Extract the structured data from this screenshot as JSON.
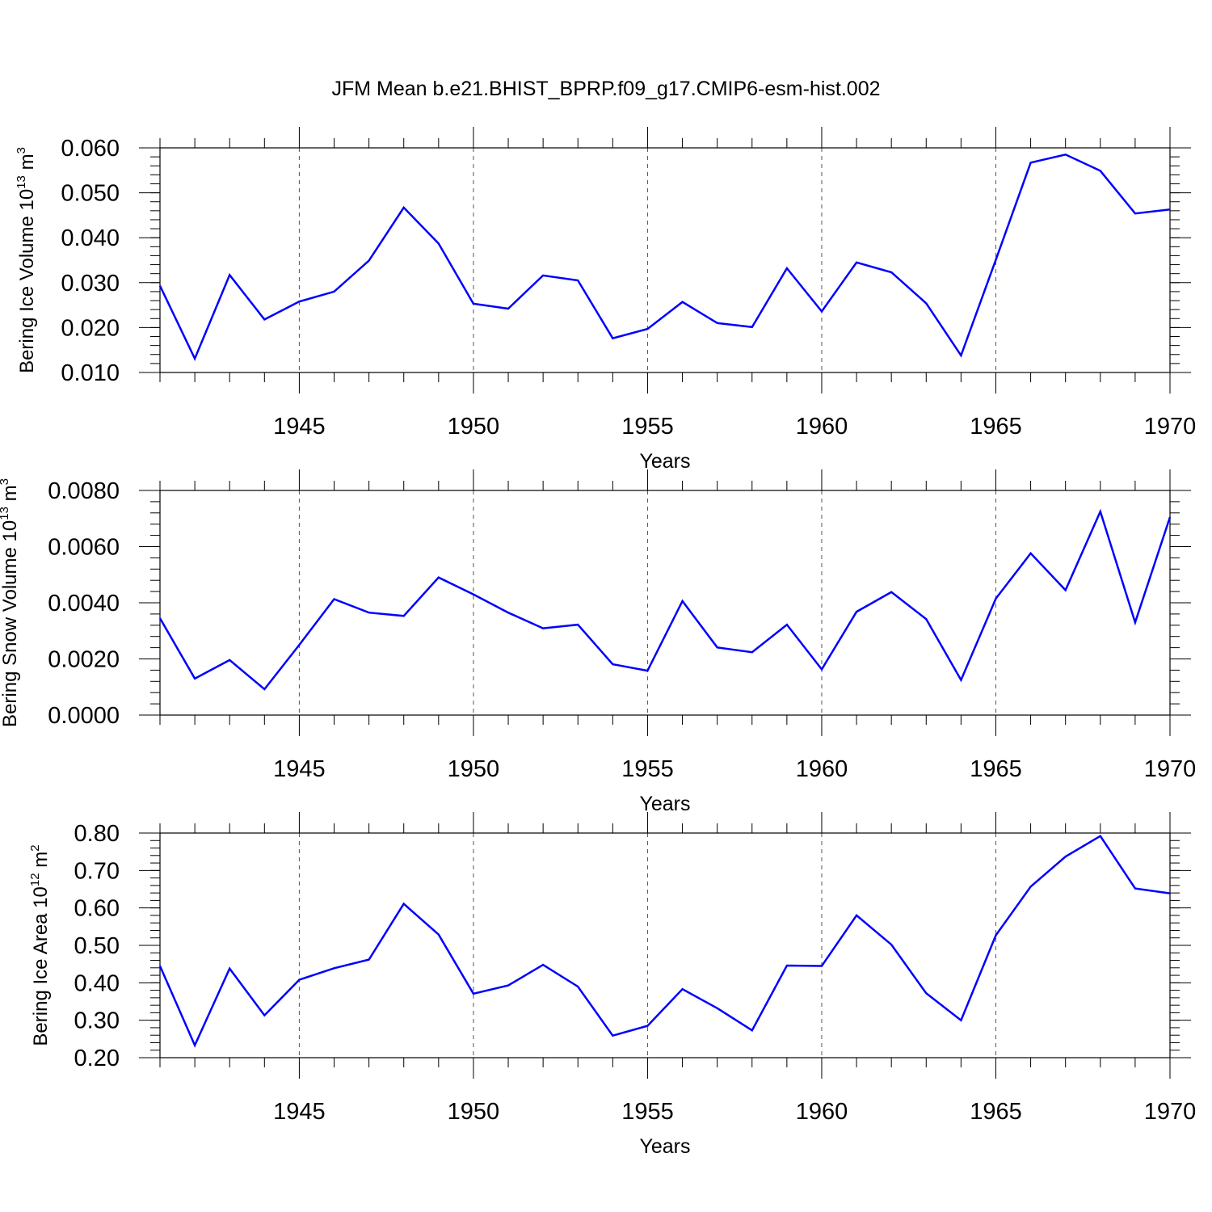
{
  "chart_data": {
    "title": "JFM Mean b.e21.BHIST_BPRP.f09_g17.CMIP6-esm-hist.002",
    "x": [
      1941,
      1942,
      1943,
      1944,
      1945,
      1946,
      1947,
      1948,
      1949,
      1950,
      1951,
      1952,
      1953,
      1954,
      1955,
      1956,
      1957,
      1958,
      1959,
      1960,
      1961,
      1962,
      1963,
      1964,
      1965,
      1966,
      1967,
      1968,
      1969,
      1970
    ],
    "xlim": [
      1941,
      1970
    ],
    "xticks": [
      1945,
      1950,
      1955,
      1960,
      1965,
      1970
    ],
    "xlabel": "Years",
    "panels": [
      {
        "type": "line",
        "ylabel": "Bering Ice Volume",
        "ylabel_unit_base": "10",
        "ylabel_unit_exp": "13",
        "ylabel_unit_tail": "m",
        "ylabel_unit_tail_exp": "3",
        "ylim": [
          0.01,
          0.06
        ],
        "yticks": [
          "0.010",
          "0.020",
          "0.030",
          "0.040",
          "0.050",
          "0.060"
        ],
        "yticks_values": [
          0.01,
          0.02,
          0.03,
          0.04,
          0.05,
          0.06
        ],
        "color": "#0000ff",
        "values": [
          0.0293,
          0.0131,
          0.0317,
          0.0218,
          0.0258,
          0.028,
          0.0349,
          0.0467,
          0.0387,
          0.0253,
          0.0242,
          0.0316,
          0.0305,
          0.0176,
          0.0197,
          0.0257,
          0.021,
          0.0201,
          0.0332,
          0.0236,
          0.0345,
          0.0323,
          0.0254,
          0.0138,
          0.0351,
          0.0567,
          0.0585,
          0.0549,
          0.0454,
          0.0463
        ]
      },
      {
        "type": "line",
        "ylabel": "Bering Snow Volume",
        "ylabel_unit_base": "10",
        "ylabel_unit_exp": "13",
        "ylabel_unit_tail": "m",
        "ylabel_unit_tail_exp": "3",
        "ylim": [
          0.0,
          0.008
        ],
        "yticks": [
          "0.0000",
          "0.0020",
          "0.0040",
          "0.0060",
          "0.0080"
        ],
        "yticks_values": [
          0.0,
          0.002,
          0.004,
          0.006,
          0.008
        ],
        "color": "#0000ff",
        "values": [
          0.00345,
          0.0013,
          0.00196,
          0.00092,
          0.0025,
          0.00413,
          0.00365,
          0.00353,
          0.0049,
          0.0043,
          0.00365,
          0.00309,
          0.00322,
          0.00181,
          0.00158,
          0.00406,
          0.00241,
          0.00224,
          0.00322,
          0.00163,
          0.00368,
          0.00438,
          0.00342,
          0.00125,
          0.00415,
          0.00576,
          0.00445,
          0.00725,
          0.0033,
          0.00705
        ]
      },
      {
        "type": "line",
        "ylabel": "Bering Ice Area",
        "ylabel_unit_base": "10",
        "ylabel_unit_exp": "12",
        "ylabel_unit_tail": "m",
        "ylabel_unit_tail_exp": "2",
        "ylim": [
          0.2,
          0.8
        ],
        "yticks": [
          "0.20",
          "0.30",
          "0.40",
          "0.50",
          "0.60",
          "0.70",
          "0.80"
        ],
        "yticks_values": [
          0.2,
          0.3,
          0.4,
          0.5,
          0.6,
          0.7,
          0.8
        ],
        "color": "#0000ff",
        "values": [
          0.445,
          0.233,
          0.438,
          0.313,
          0.408,
          0.439,
          0.462,
          0.611,
          0.529,
          0.371,
          0.393,
          0.448,
          0.39,
          0.259,
          0.285,
          0.383,
          0.332,
          0.273,
          0.446,
          0.445,
          0.58,
          0.502,
          0.372,
          0.3,
          0.527,
          0.657,
          0.737,
          0.792,
          0.652,
          0.639
        ]
      }
    ]
  }
}
